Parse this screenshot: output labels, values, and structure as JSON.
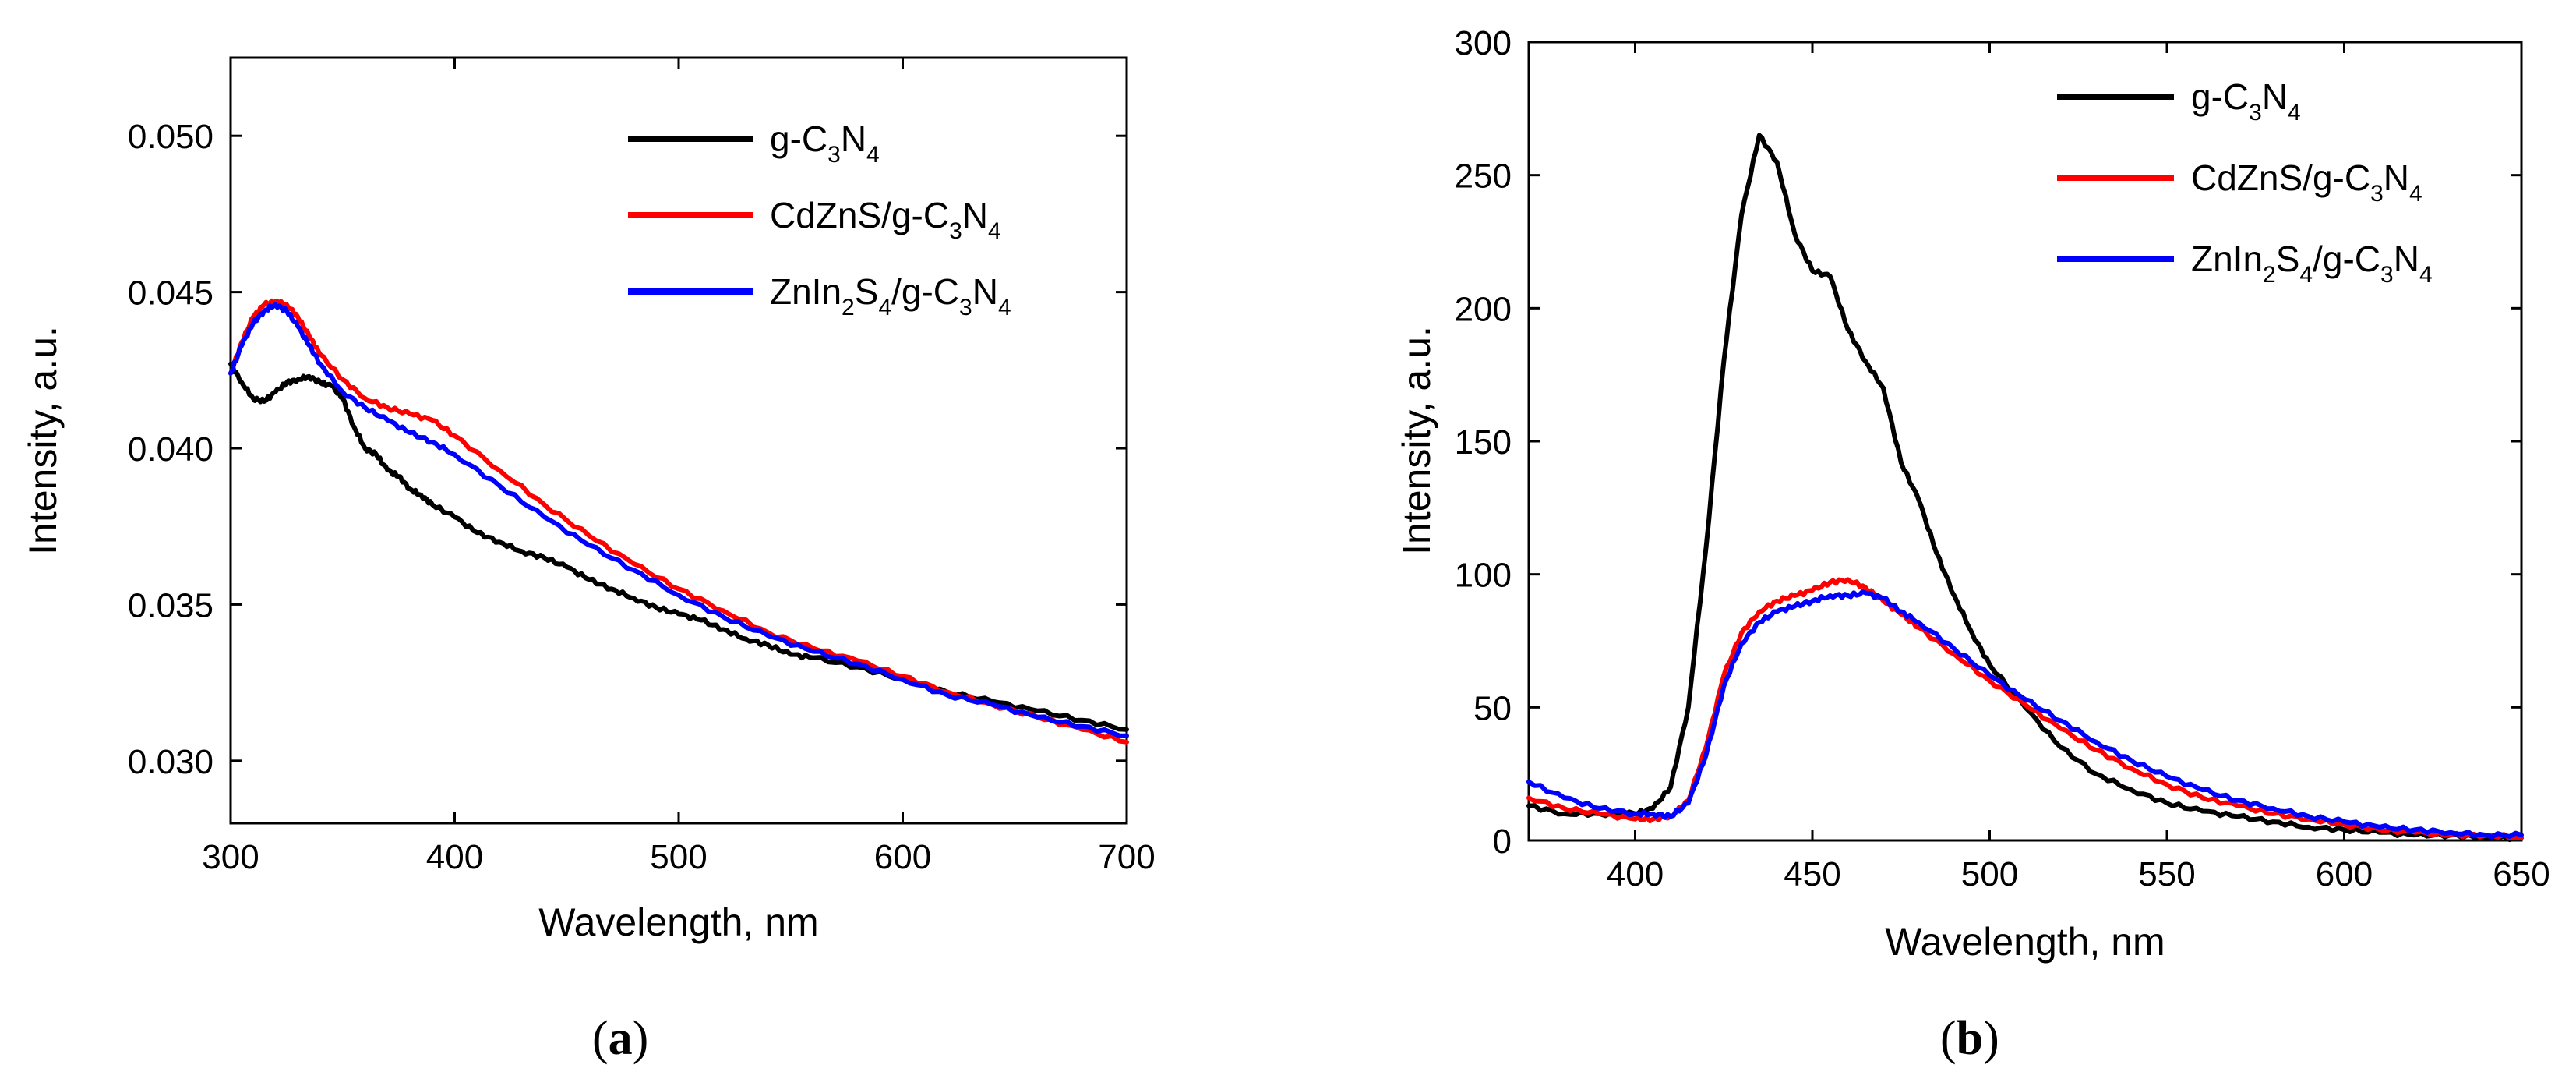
{
  "figure": {
    "panel_labels": [
      {
        "open": "(",
        "letter": "a",
        "close": ")"
      },
      {
        "open": "(",
        "letter": "b",
        "close": ")"
      }
    ]
  },
  "chart_data": [
    {
      "type": "line",
      "panel": "a",
      "xlabel": "Wavelength, nm",
      "ylabel": "Intensity, a.u.",
      "xlim": [
        300,
        700
      ],
      "ylim": [
        0.028,
        0.0525
      ],
      "xticks": [
        300,
        400,
        500,
        600,
        700
      ],
      "xtick_labels": [
        "300",
        "400",
        "500",
        "600",
        "700"
      ],
      "yticks": [
        0.03,
        0.035,
        0.04,
        0.045,
        0.05
      ],
      "ytick_labels": [
        "0.030",
        "0.035",
        "0.040",
        "0.045",
        "0.050"
      ],
      "grid": false,
      "legend_position": "top-right",
      "series": [
        {
          "name_parts": [
            "g-C",
            "3",
            "N",
            "4"
          ],
          "color": "#000000",
          "x": [
            300,
            305,
            310,
            315,
            320,
            325,
            330,
            335,
            340,
            345,
            350,
            355,
            360,
            365,
            370,
            375,
            380,
            385,
            390,
            400,
            410,
            420,
            430,
            440,
            450,
            460,
            470,
            480,
            490,
            500,
            510,
            520,
            530,
            540,
            550,
            560,
            580,
            600,
            620,
            640,
            660,
            680,
            700
          ],
          "values": [
            0.0427,
            0.0421,
            0.0416,
            0.0415,
            0.0418,
            0.0421,
            0.0422,
            0.0423,
            0.0421,
            0.042,
            0.0416,
            0.0407,
            0.04,
            0.0398,
            0.0393,
            0.0391,
            0.0387,
            0.0385,
            0.0382,
            0.0378,
            0.0373,
            0.037,
            0.0367,
            0.0365,
            0.0362,
            0.0358,
            0.0355,
            0.0352,
            0.0349,
            0.0347,
            0.0345,
            0.0342,
            0.0339,
            0.0337,
            0.0334,
            0.0333,
            0.033,
            0.0326,
            0.0322,
            0.0319,
            0.0316,
            0.0313,
            0.031
          ]
        },
        {
          "name_parts": [
            "CdZnS/g-C",
            "3",
            "N",
            "4"
          ],
          "color": "#ff0000",
          "x": [
            300,
            305,
            310,
            315,
            320,
            325,
            330,
            335,
            340,
            350,
            360,
            370,
            380,
            390,
            400,
            420,
            440,
            460,
            480,
            500,
            520,
            540,
            560,
            580,
            600,
            620,
            640,
            660,
            680,
            700
          ],
          "values": [
            0.0424,
            0.0434,
            0.0442,
            0.0446,
            0.0447,
            0.0446,
            0.0442,
            0.0436,
            0.043,
            0.0422,
            0.0416,
            0.0413,
            0.0411,
            0.0409,
            0.0404,
            0.0393,
            0.0382,
            0.0372,
            0.0363,
            0.0355,
            0.0348,
            0.0341,
            0.0336,
            0.0332,
            0.0327,
            0.0322,
            0.0318,
            0.0314,
            0.031,
            0.0306
          ]
        },
        {
          "name_parts": [
            "ZnIn",
            "2",
            "S",
            "4",
            "/g-C",
            "3",
            "N",
            "4"
          ],
          "color": "#0000ff",
          "x": [
            300,
            305,
            310,
            315,
            320,
            325,
            330,
            335,
            340,
            350,
            360,
            370,
            380,
            390,
            400,
            420,
            440,
            460,
            480,
            500,
            520,
            540,
            560,
            580,
            600,
            620,
            640,
            660,
            680,
            700
          ],
          "values": [
            0.0424,
            0.0433,
            0.044,
            0.0444,
            0.0446,
            0.0444,
            0.0439,
            0.0433,
            0.0427,
            0.0418,
            0.0413,
            0.0409,
            0.0405,
            0.0402,
            0.0398,
            0.0388,
            0.0378,
            0.0369,
            0.0361,
            0.0353,
            0.0346,
            0.034,
            0.0335,
            0.0331,
            0.0326,
            0.0321,
            0.0318,
            0.0314,
            0.0311,
            0.0308
          ]
        }
      ]
    },
    {
      "type": "line",
      "panel": "b",
      "xlabel": "Wavelength, nm",
      "ylabel": "Intensity, a.u.",
      "xlim": [
        370,
        650
      ],
      "ylim": [
        0,
        300
      ],
      "xticks": [
        400,
        450,
        500,
        550,
        600,
        650
      ],
      "xtick_labels": [
        "400",
        "450",
        "500",
        "550",
        "600",
        "650"
      ],
      "yticks": [
        0,
        50,
        100,
        150,
        200,
        250,
        300
      ],
      "ytick_labels": [
        "0",
        "50",
        "100",
        "150",
        "200",
        "250",
        "300"
      ],
      "grid": false,
      "legend_position": "top-right",
      "series": [
        {
          "name_parts": [
            "g-C",
            "3",
            "N",
            "4"
          ],
          "color": "#000000",
          "x": [
            370,
            380,
            390,
            400,
            405,
            410,
            415,
            420,
            425,
            430,
            435,
            440,
            445,
            450,
            455,
            460,
            465,
            470,
            475,
            480,
            485,
            490,
            495,
            500,
            510,
            520,
            530,
            540,
            550,
            560,
            570,
            580,
            590,
            600,
            610,
            620,
            630,
            640,
            650
          ],
          "values": [
            13,
            10,
            10,
            10,
            12,
            20,
            50,
            110,
            180,
            235,
            265,
            255,
            228,
            214,
            212,
            192,
            180,
            170,
            142,
            128,
            108,
            92,
            78,
            66,
            50,
            35,
            25,
            19,
            14,
            11,
            9,
            7,
            5,
            4,
            3,
            2,
            2,
            1,
            1
          ]
        },
        {
          "name_parts": [
            "CdZnS/g-C",
            "3",
            "N",
            "4"
          ],
          "color": "#ff0000",
          "x": [
            370,
            380,
            390,
            400,
            405,
            410,
            415,
            420,
            425,
            430,
            435,
            440,
            445,
            450,
            455,
            460,
            465,
            470,
            475,
            480,
            490,
            500,
            510,
            520,
            530,
            540,
            550,
            560,
            570,
            580,
            590,
            600,
            610,
            620,
            630,
            640,
            650
          ],
          "values": [
            16,
            12,
            10,
            8,
            8,
            9,
            15,
            35,
            62,
            78,
            86,
            90,
            92,
            94,
            97,
            98,
            95,
            90,
            85,
            80,
            70,
            60,
            51,
            42,
            34,
            27,
            21,
            16,
            13,
            10,
            8,
            6,
            4,
            3,
            2,
            2,
            1
          ]
        },
        {
          "name_parts": [
            "ZnIn",
            "2",
            "S",
            "4",
            "/g-C",
            "3",
            "N",
            "4"
          ],
          "color": "#0000ff",
          "x": [
            370,
            380,
            390,
            400,
            405,
            410,
            415,
            420,
            425,
            430,
            435,
            440,
            445,
            450,
            455,
            460,
            465,
            470,
            475,
            480,
            490,
            500,
            510,
            520,
            530,
            540,
            550,
            560,
            570,
            580,
            590,
            600,
            610,
            620,
            630,
            640,
            650
          ],
          "values": [
            22,
            16,
            12,
            10,
            10,
            9,
            14,
            32,
            58,
            74,
            82,
            86,
            88,
            90,
            92,
            92,
            93,
            91,
            86,
            82,
            72,
            62,
            53,
            45,
            37,
            30,
            24,
            19,
            15,
            12,
            9,
            7,
            5,
            4,
            3,
            2,
            2
          ]
        }
      ]
    }
  ]
}
